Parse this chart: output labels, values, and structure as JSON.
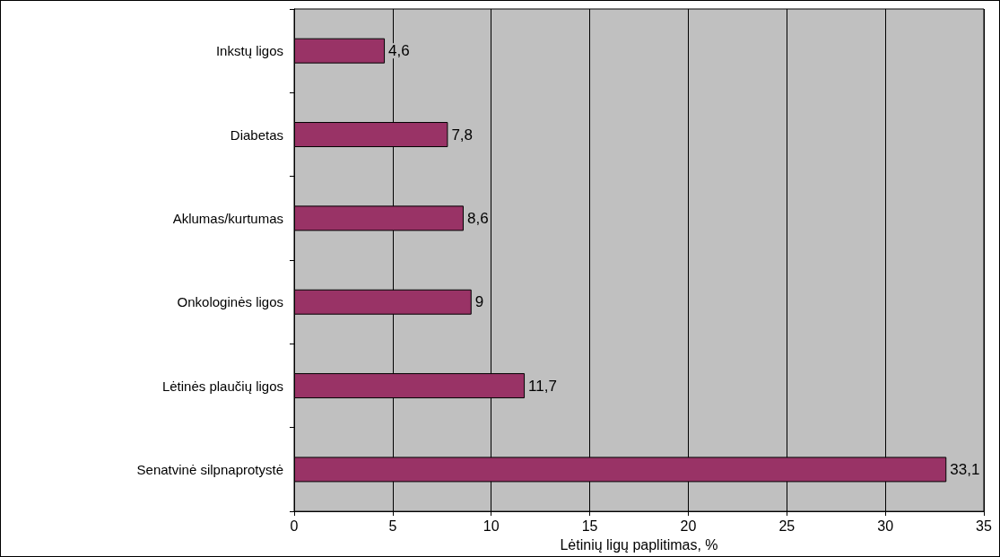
{
  "chart_data": {
    "type": "bar",
    "orientation": "horizontal",
    "xlabel": "Lėtinių ligų paplitimas, %",
    "categories": [
      "Inkstų ligos",
      "Diabetas",
      "Aklumas/kurtumas",
      "Onkologinės ligos",
      "Lėtinės plaučių ligos",
      "Senatvinė silpnaprotystė"
    ],
    "values": [
      4.6,
      7.8,
      8.6,
      9,
      11.7,
      33.1
    ],
    "value_labels": [
      "4,6",
      "7,8",
      "8,6",
      "9",
      "11,7",
      "33,1"
    ],
    "color": "#993366",
    "xlim": [
      0,
      35
    ],
    "xticks": [
      0,
      5,
      10,
      15,
      20,
      25,
      30,
      35
    ],
    "grid": "x"
  }
}
